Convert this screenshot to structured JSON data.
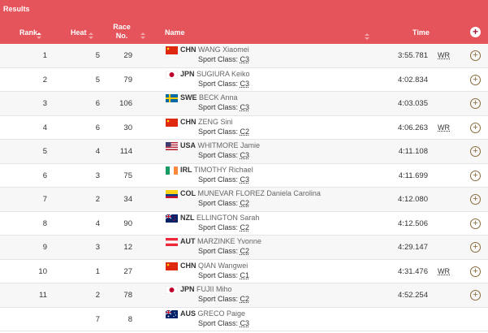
{
  "header": {
    "title": "Results",
    "columns": {
      "rank": "Rank",
      "heat": "Heat",
      "race_no": "Race No.",
      "name": "Name",
      "time": "Time"
    },
    "expand_icon": "plus-circle-icon"
  },
  "colors": {
    "header": "#e5535b",
    "accent": "#a3193b"
  },
  "rows": [
    {
      "rank": "1",
      "heat": "5",
      "race": "29",
      "noc": "CHN",
      "name": "WANG Xiaomei",
      "sport_class_label": "Sport Class:",
      "class": "C3",
      "time": "3:55.781",
      "record": "WR",
      "flag": "chn"
    },
    {
      "rank": "2",
      "heat": "5",
      "race": "79",
      "noc": "JPN",
      "name": "SUGIURA Keiko",
      "sport_class_label": "Sport Class:",
      "class": "C3",
      "time": "4:02.834",
      "record": "",
      "flag": "jpn"
    },
    {
      "rank": "3",
      "heat": "6",
      "race": "106",
      "noc": "SWE",
      "name": "BECK Anna",
      "sport_class_label": "Sport Class:",
      "class": "C3",
      "time": "4:03.035",
      "record": "",
      "flag": "swe"
    },
    {
      "rank": "4",
      "heat": "6",
      "race": "30",
      "noc": "CHN",
      "name": "ZENG Sini",
      "sport_class_label": "Sport Class:",
      "class": "C2",
      "time": "4:06.263",
      "record": "WR",
      "flag": "chn"
    },
    {
      "rank": "5",
      "heat": "4",
      "race": "114",
      "noc": "USA",
      "name": "WHITMORE Jamie",
      "sport_class_label": "Sport Class:",
      "class": "C3",
      "time": "4:11.108",
      "record": "",
      "flag": "usa"
    },
    {
      "rank": "6",
      "heat": "3",
      "race": "75",
      "noc": "IRL",
      "name": "TIMOTHY Richael",
      "sport_class_label": "Sport Class:",
      "class": "C3",
      "time": "4:11.699",
      "record": "",
      "flag": "irl"
    },
    {
      "rank": "7",
      "heat": "2",
      "race": "34",
      "noc": "COL",
      "name": "MUNEVAR FLOREZ Daniela Carolina",
      "sport_class_label": "Sport Class:",
      "class": "C2",
      "time": "4:12.080",
      "record": "",
      "flag": "col"
    },
    {
      "rank": "8",
      "heat": "4",
      "race": "90",
      "noc": "NZL",
      "name": "ELLINGTON Sarah",
      "sport_class_label": "Sport Class:",
      "class": "C2",
      "time": "4:12.506",
      "record": "",
      "flag": "nzl"
    },
    {
      "rank": "9",
      "heat": "3",
      "race": "12",
      "noc": "AUT",
      "name": "MARZINKE Yvonne",
      "sport_class_label": "Sport Class:",
      "class": "C2",
      "time": "4:29.147",
      "record": "",
      "flag": "aut"
    },
    {
      "rank": "10",
      "heat": "1",
      "race": "27",
      "noc": "CHN",
      "name": "QIAN Wangwei",
      "sport_class_label": "Sport Class:",
      "class": "C1",
      "time": "4:31.476",
      "record": "WR",
      "flag": "chn"
    },
    {
      "rank": "11",
      "heat": "2",
      "race": "78",
      "noc": "JPN",
      "name": "FUJII Miho",
      "sport_class_label": "Sport Class:",
      "class": "C2",
      "time": "4:52.254",
      "record": "",
      "flag": "jpn"
    },
    {
      "rank": "",
      "heat": "7",
      "race": "8",
      "noc": "AUS",
      "name": "GRECO Paige",
      "sport_class_label": "Sport Class:",
      "class": "C3",
      "time": "",
      "record": "",
      "flag": "aus"
    }
  ]
}
